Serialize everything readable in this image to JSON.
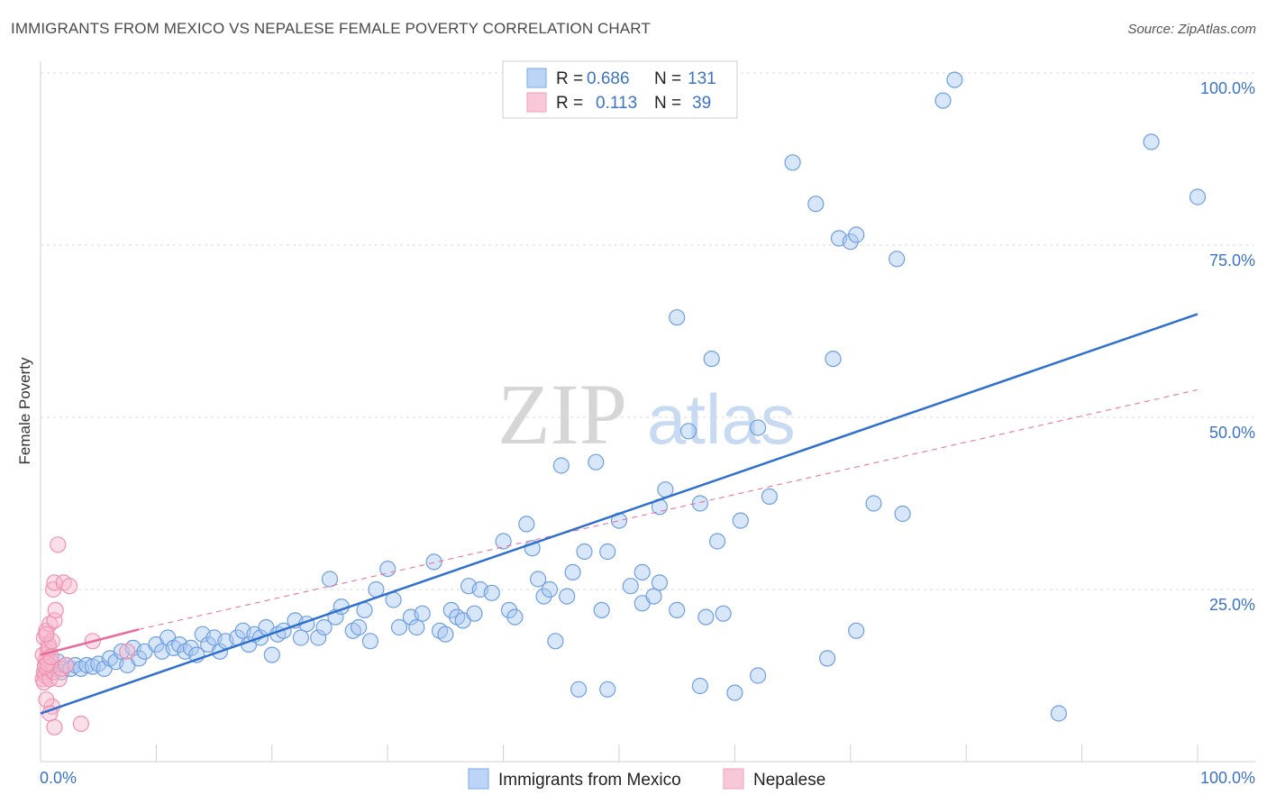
{
  "header": {
    "title": "IMMIGRANTS FROM MEXICO VS NEPALESE FEMALE POVERTY CORRELATION CHART",
    "source": "Source: ZipAtlas.com"
  },
  "watermark": {
    "zip": "ZIP",
    "atlas": "atlas"
  },
  "colors": {
    "blue": "#7aaae8",
    "blue_line": "#2f6fcf",
    "pink": "#f2a0ba",
    "pink_line": "#e8699a",
    "grid": "#d9d9d9",
    "axis_text": "#3b73c6"
  },
  "legend": {
    "rows": [
      {
        "r_label": "R =",
        "r_value": "0.686",
        "n_label": "N =",
        "n_value": "131"
      },
      {
        "r_label": "R =",
        "r_value": "0.113",
        "n_label": "N =",
        "n_value": "39"
      }
    ]
  },
  "chart_data": {
    "type": "scatter",
    "title": "IMMIGRANTS FROM MEXICO VS NEPALESE FEMALE POVERTY CORRELATION CHART",
    "xlabel": "",
    "ylabel": "Female Poverty",
    "xlim": [
      0,
      100
    ],
    "ylim": [
      0,
      104
    ],
    "y_ticks": [
      "25.0%",
      "50.0%",
      "75.0%",
      "100.0%"
    ],
    "x_ticks": [
      "0.0%",
      "100.0%"
    ],
    "grid": true,
    "legend_position": "top-center",
    "series": [
      {
        "name": "Immigrants from Mexico",
        "r": 0.686,
        "n": 131,
        "trend": {
          "x": [
            0,
            100
          ],
          "y": [
            7.0,
            65.0
          ]
        },
        "points": [
          [
            0.8,
            14
          ],
          [
            1.2,
            13.5
          ],
          [
            1.5,
            14.5
          ],
          [
            1.8,
            13
          ],
          [
            2.2,
            14
          ],
          [
            2.6,
            13.5
          ],
          [
            3.0,
            14
          ],
          [
            3.5,
            13.5
          ],
          [
            4,
            14
          ],
          [
            4.5,
            13.8
          ],
          [
            5,
            14.2
          ],
          [
            5.5,
            13.5
          ],
          [
            6,
            15
          ],
          [
            6.5,
            14.5
          ],
          [
            7,
            16
          ],
          [
            7.5,
            14
          ],
          [
            8,
            16.5
          ],
          [
            8.5,
            15
          ],
          [
            9,
            16
          ],
          [
            10,
            17
          ],
          [
            10.5,
            16
          ],
          [
            11,
            18
          ],
          [
            11.5,
            16.5
          ],
          [
            12,
            17
          ],
          [
            12.5,
            16
          ],
          [
            13,
            16.5
          ],
          [
            13.5,
            15.5
          ],
          [
            14,
            18.5
          ],
          [
            14.5,
            17
          ],
          [
            15,
            18
          ],
          [
            15.5,
            16
          ],
          [
            16,
            17.5
          ],
          [
            17,
            18
          ],
          [
            17.5,
            19
          ],
          [
            18,
            17
          ],
          [
            18.5,
            18.5
          ],
          [
            19,
            18
          ],
          [
            19.5,
            19.5
          ],
          [
            20,
            15.5
          ],
          [
            20.5,
            18.5
          ],
          [
            21,
            19
          ],
          [
            22,
            20.5
          ],
          [
            22.5,
            18
          ],
          [
            23,
            20
          ],
          [
            24,
            18
          ],
          [
            24.5,
            19.5
          ],
          [
            25,
            26.5
          ],
          [
            25.5,
            21
          ],
          [
            26,
            22.5
          ],
          [
            27,
            19
          ],
          [
            27.5,
            19.5
          ],
          [
            28,
            22
          ],
          [
            28.5,
            17.5
          ],
          [
            29,
            25
          ],
          [
            30,
            28
          ],
          [
            30.5,
            23.5
          ],
          [
            31,
            19.5
          ],
          [
            32,
            21
          ],
          [
            32.5,
            19.5
          ],
          [
            33,
            21.5
          ],
          [
            34,
            29
          ],
          [
            34.5,
            19
          ],
          [
            35,
            18.5
          ],
          [
            35.5,
            22
          ],
          [
            36,
            21
          ],
          [
            36.5,
            20.5
          ],
          [
            37,
            25.5
          ],
          [
            37.5,
            21.5
          ],
          [
            38,
            25
          ],
          [
            39,
            24.5
          ],
          [
            40,
            32
          ],
          [
            40.5,
            22
          ],
          [
            41,
            21
          ],
          [
            42,
            34.5
          ],
          [
            42.5,
            31
          ],
          [
            43,
            26.5
          ],
          [
            43.5,
            24
          ],
          [
            44,
            25
          ],
          [
            44.5,
            17.5
          ],
          [
            45,
            43
          ],
          [
            45.5,
            24
          ],
          [
            46,
            27.5
          ],
          [
            46.5,
            10.5
          ],
          [
            47,
            30.5
          ],
          [
            48,
            43.5
          ],
          [
            48.5,
            22
          ],
          [
            49,
            30.5
          ],
          [
            49,
            10.5
          ],
          [
            50,
            35
          ],
          [
            51,
            25.5
          ],
          [
            52,
            23
          ],
          [
            52,
            27.5
          ],
          [
            53,
            24
          ],
          [
            53.5,
            26
          ],
          [
            53.5,
            37
          ],
          [
            54,
            39.5
          ],
          [
            55,
            22
          ],
          [
            55,
            64.5
          ],
          [
            56,
            48
          ],
          [
            57,
            37.5
          ],
          [
            57,
            11
          ],
          [
            57.5,
            21
          ],
          [
            58,
            58.5
          ],
          [
            58.5,
            32
          ],
          [
            59,
            21.5
          ],
          [
            60,
            10
          ],
          [
            60.5,
            35
          ],
          [
            62,
            48.5
          ],
          [
            62,
            12.5
          ],
          [
            63,
            38.5
          ],
          [
            65,
            87
          ],
          [
            67,
            81
          ],
          [
            68,
            15
          ],
          [
            68.5,
            58.5
          ],
          [
            69,
            76
          ],
          [
            70,
            75.5
          ],
          [
            70.5,
            76.5
          ],
          [
            70.5,
            19
          ],
          [
            72,
            37.5
          ],
          [
            74,
            73
          ],
          [
            74.5,
            36
          ],
          [
            78,
            96
          ],
          [
            79,
            99
          ],
          [
            88,
            7
          ],
          [
            96,
            90
          ],
          [
            100,
            82
          ]
        ]
      },
      {
        "name": "Nepalese",
        "r": 0.113,
        "n": 39,
        "trend": {
          "x": [
            0,
            8.5
          ],
          "y": [
            15.5,
            19.2
          ]
        },
        "trend_dashed": {
          "x": [
            8.5,
            100
          ],
          "y": [
            19.2,
            54.0
          ]
        },
        "points": [
          [
            0.2,
            12
          ],
          [
            0.3,
            13
          ],
          [
            0.4,
            14
          ],
          [
            0.5,
            15
          ],
          [
            0.6,
            16
          ],
          [
            0.7,
            17
          ],
          [
            0.3,
            18
          ],
          [
            0.5,
            19
          ],
          [
            0.8,
            20
          ],
          [
            0.4,
            12.5
          ],
          [
            0.6,
            13.5
          ],
          [
            0.9,
            14.5
          ],
          [
            0.2,
            15.5
          ],
          [
            0.7,
            16.5
          ],
          [
            1.0,
            17.5
          ],
          [
            0.5,
            18.5
          ],
          [
            0.3,
            11.5
          ],
          [
            0.8,
            12
          ],
          [
            1.1,
            13
          ],
          [
            0.4,
            13.8
          ],
          [
            0.6,
            14.2
          ],
          [
            0.9,
            15.2
          ],
          [
            1.2,
            20.5
          ],
          [
            1.3,
            22
          ],
          [
            1.1,
            25
          ],
          [
            1.2,
            26
          ],
          [
            1.5,
            31.5
          ],
          [
            2.0,
            26
          ],
          [
            2.5,
            25.5
          ],
          [
            1.0,
            8
          ],
          [
            0.8,
            7
          ],
          [
            1.2,
            5
          ],
          [
            0.5,
            9
          ],
          [
            3.5,
            5.5
          ],
          [
            4.5,
            17.5
          ],
          [
            7.5,
            16
          ],
          [
            1.6,
            12
          ],
          [
            1.8,
            13.5
          ],
          [
            2.2,
            14
          ]
        ]
      }
    ]
  },
  "bottom_legend": {
    "series1": "Immigrants from Mexico",
    "series2": "Nepalese"
  }
}
